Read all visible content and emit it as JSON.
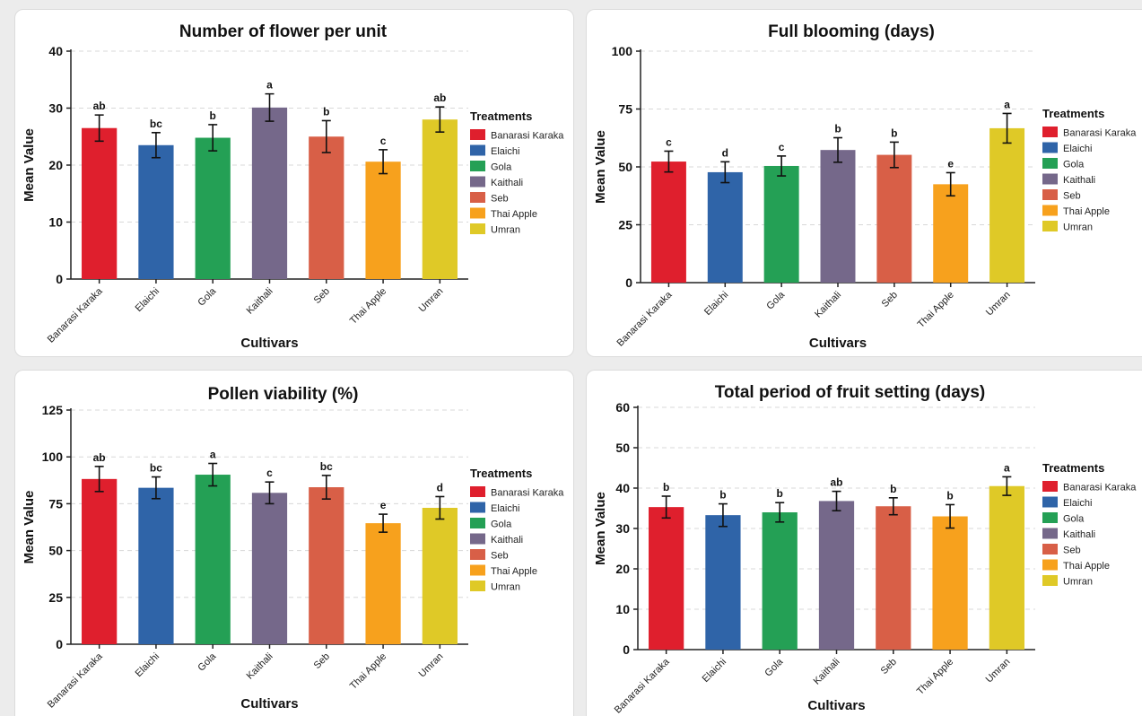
{
  "legend_title": "Treatments",
  "colors": {
    "Banarasi Karaka": "#df1f2d",
    "Elaichi": "#2f64a8",
    "Gola": "#24a055",
    "Kaithali": "#75688a",
    "Seb": "#d85f47",
    "Thai Apple": "#f7a11d",
    "Umran": "#dfc927"
  },
  "chart_data": [
    {
      "type": "bar",
      "title": "Number of flower per unit",
      "xlabel": "Cultivars",
      "ylabel": "Mean Value",
      "categories": [
        "Banarasi Karaka",
        "Elaichi",
        "Gola",
        "Kaithali",
        "Seb",
        "Thai Apple",
        "Umran"
      ],
      "values": [
        26.5,
        23.5,
        24.8,
        30.1,
        25.0,
        20.6,
        28.0
      ],
      "error": [
        2.3,
        2.2,
        2.3,
        2.4,
        2.8,
        2.1,
        2.2
      ],
      "labels": [
        "ab",
        "bc",
        "b",
        "a",
        "b",
        "c",
        "ab"
      ],
      "ylim": [
        0,
        40
      ],
      "yticks": [
        0,
        10,
        20,
        30,
        40
      ],
      "grid": true,
      "legend": "right"
    },
    {
      "type": "bar",
      "title": "Full blooming (days)",
      "xlabel": "Cultivars",
      "ylabel": "Mean Value",
      "categories": [
        "Banarasi Karaka",
        "Elaichi",
        "Gola",
        "Kaithali",
        "Seb",
        "Thai Apple",
        "Umran"
      ],
      "values": [
        52.3,
        47.7,
        50.4,
        57.3,
        55.2,
        42.5,
        66.7
      ],
      "error": [
        4.5,
        4.5,
        4.3,
        5.3,
        5.5,
        5.0,
        6.4
      ],
      "labels": [
        "c",
        "d",
        "c",
        "b",
        "b",
        "e",
        "a"
      ],
      "ylim": [
        0,
        100
      ],
      "yticks": [
        0,
        25,
        50,
        75,
        100
      ],
      "grid": true,
      "legend": "right"
    },
    {
      "type": "bar",
      "title": "Pollen viability (%)",
      "xlabel": "Cultivars",
      "ylabel": "Mean Value",
      "categories": [
        "Banarasi Karaka",
        "Elaichi",
        "Gola",
        "Kaithali",
        "Seb",
        "Thai Apple",
        "Umran"
      ],
      "values": [
        88.2,
        83.5,
        90.5,
        80.8,
        83.8,
        64.6,
        72.8
      ],
      "error": [
        6.7,
        5.8,
        6.0,
        5.8,
        6.3,
        4.8,
        6.0
      ],
      "labels": [
        "ab",
        "bc",
        "a",
        "c",
        "bc",
        "e",
        "d"
      ],
      "ylim": [
        0,
        125
      ],
      "yticks": [
        0,
        25,
        50,
        75,
        100,
        125
      ],
      "grid": true,
      "legend": "right"
    },
    {
      "type": "bar",
      "title": "Total period of fruit setting (days)",
      "xlabel": "Cultivars",
      "ylabel": "Mean Value",
      "categories": [
        "Banarasi Karaka",
        "Elaichi",
        "Gola",
        "Kaithali",
        "Seb",
        "Thai Apple",
        "Umran"
      ],
      "values": [
        35.3,
        33.3,
        34.0,
        36.8,
        35.5,
        33.0,
        40.5
      ],
      "error": [
        2.7,
        2.8,
        2.4,
        2.4,
        2.1,
        2.9,
        2.3
      ],
      "labels": [
        "b",
        "b",
        "b",
        "ab",
        "b",
        "b",
        "a"
      ],
      "ylim": [
        0,
        60
      ],
      "yticks": [
        0,
        10,
        20,
        30,
        40,
        50,
        60
      ],
      "grid": true,
      "legend": "right"
    }
  ]
}
